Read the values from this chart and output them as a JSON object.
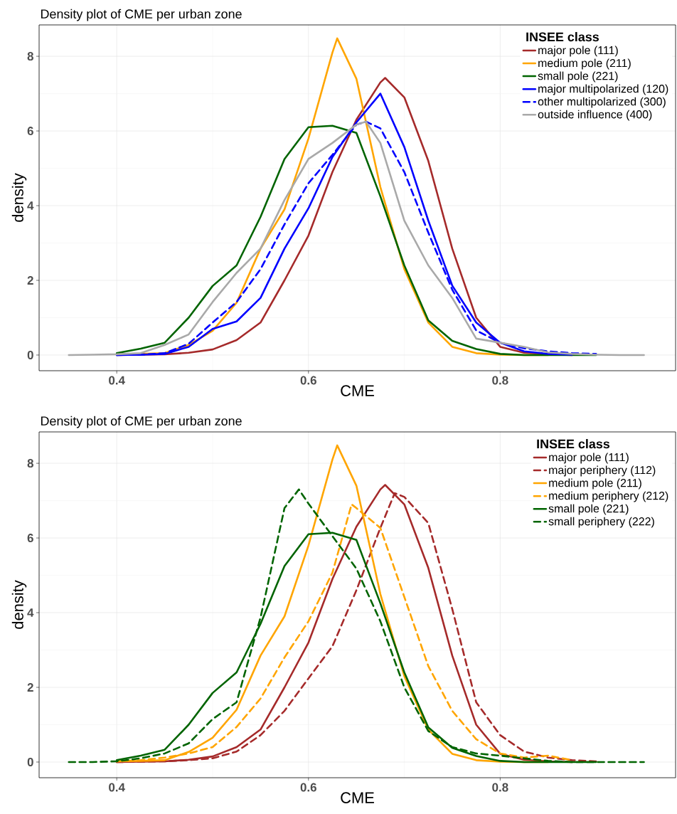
{
  "chart_data": [
    {
      "type": "line",
      "title": "Density plot of CME per urban zone",
      "xlabel": "CME",
      "ylabel": "density",
      "legend_title": "INSEE class",
      "legend": "top right",
      "grid": true,
      "xlim": [
        0.319,
        0.983
      ],
      "ylim": [
        -0.42,
        8.84
      ],
      "xticks": [
        0.4,
        0.6,
        0.8
      ],
      "yticks": [
        0,
        2,
        4,
        6,
        8
      ],
      "series": [
        {
          "name": "major pole (111)",
          "color": "#a52a2a",
          "line_style": "solid",
          "x": [
            0.4,
            0.425,
            0.45,
            0.475,
            0.5,
            0.525,
            0.55,
            0.575,
            0.6,
            0.625,
            0.65,
            0.675,
            0.68,
            0.7,
            0.725,
            0.75,
            0.775,
            0.8,
            0.825,
            0.85,
            0.875
          ],
          "values": [
            0,
            0.01,
            0.02,
            0.06,
            0.15,
            0.4,
            0.87,
            2.0,
            3.2,
            4.9,
            6.3,
            7.3,
            7.42,
            6.9,
            5.2,
            2.85,
            1.0,
            0.22,
            0.06,
            0.02,
            0
          ]
        },
        {
          "name": "medium pole (211)",
          "color": "#ffa500",
          "line_style": "solid",
          "x": [
            0.4,
            0.425,
            0.45,
            0.475,
            0.5,
            0.525,
            0.55,
            0.575,
            0.6,
            0.625,
            0.63,
            0.65,
            0.675,
            0.7,
            0.725,
            0.75,
            0.775,
            0.8,
            0.825,
            0.85
          ],
          "values": [
            0.02,
            0.03,
            0.05,
            0.27,
            0.65,
            1.4,
            2.85,
            3.9,
            5.8,
            8.1,
            8.48,
            7.4,
            4.5,
            2.3,
            0.87,
            0.22,
            0.05,
            0.01,
            0,
            0
          ]
        },
        {
          "name": "small pole (221)",
          "color": "#006400",
          "line_style": "solid",
          "x": [
            0.4,
            0.425,
            0.45,
            0.475,
            0.5,
            0.525,
            0.55,
            0.575,
            0.6,
            0.625,
            0.65,
            0.675,
            0.7,
            0.725,
            0.75,
            0.775,
            0.8,
            0.825,
            0.85,
            0.875,
            0.9
          ],
          "values": [
            0.05,
            0.17,
            0.33,
            1.0,
            1.85,
            2.4,
            3.7,
            5.25,
            6.1,
            6.14,
            5.95,
            4.25,
            2.4,
            0.93,
            0.38,
            0.16,
            0.03,
            0,
            0,
            0,
            0
          ]
        },
        {
          "name": "major multipolarized (120)",
          "color": "#0000ff",
          "line_style": "solid",
          "x": [
            0.4,
            0.425,
            0.45,
            0.475,
            0.5,
            0.525,
            0.55,
            0.575,
            0.6,
            0.625,
            0.65,
            0.675,
            0.7,
            0.725,
            0.75,
            0.775,
            0.8,
            0.825,
            0.85,
            0.875
          ],
          "values": [
            0,
            0.01,
            0.03,
            0.22,
            0.7,
            0.9,
            1.53,
            2.85,
            3.93,
            5.3,
            6.23,
            7.0,
            5.57,
            3.6,
            1.86,
            0.87,
            0.33,
            0.1,
            0.03,
            0.01
          ]
        },
        {
          "name": "other multipolarized (300)",
          "color": "#0000ff",
          "line_style": "dashed",
          "x": [
            0.4,
            0.425,
            0.45,
            0.475,
            0.5,
            0.525,
            0.55,
            0.575,
            0.6,
            0.625,
            0.65,
            0.66,
            0.675,
            0.7,
            0.725,
            0.75,
            0.775,
            0.8,
            0.825,
            0.85,
            0.875,
            0.9
          ],
          "values": [
            0,
            0.01,
            0.05,
            0.3,
            0.87,
            1.42,
            2.3,
            3.5,
            4.6,
            5.36,
            6.17,
            6.25,
            6.07,
            4.9,
            3.28,
            1.75,
            0.66,
            0.33,
            0.18,
            0.1,
            0.05,
            0.03
          ]
        },
        {
          "name": "outside influence (400)",
          "color": "#a9a9a9",
          "line_style": "solid",
          "x": [
            0.35,
            0.375,
            0.4,
            0.425,
            0.45,
            0.475,
            0.5,
            0.525,
            0.55,
            0.575,
            0.6,
            0.625,
            0.65,
            0.66,
            0.675,
            0.7,
            0.725,
            0.75,
            0.775,
            0.8,
            0.825,
            0.85,
            0.875,
            0.9,
            0.925,
            0.95
          ],
          "values": [
            0,
            0.01,
            0.02,
            0.05,
            0.27,
            0.55,
            1.42,
            2.2,
            2.85,
            4.15,
            5.25,
            5.68,
            6.17,
            6.25,
            5.68,
            3.6,
            2.4,
            1.53,
            0.44,
            0.33,
            0.22,
            0.07,
            0.03,
            0.01,
            0,
            0
          ]
        }
      ]
    },
    {
      "type": "line",
      "title": "Density plot of CME per urban zone",
      "xlabel": "CME",
      "ylabel": "density",
      "legend_title": "INSEE class",
      "legend": "top right",
      "grid": true,
      "xlim": [
        0.319,
        0.983
      ],
      "ylim": [
        -0.42,
        8.84
      ],
      "xticks": [
        0.4,
        0.6,
        0.8
      ],
      "yticks": [
        0,
        2,
        4,
        6,
        8
      ],
      "series": [
        {
          "name": "major pole (111)",
          "color": "#a52a2a",
          "line_style": "solid",
          "x": [
            0.4,
            0.425,
            0.45,
            0.475,
            0.5,
            0.525,
            0.55,
            0.575,
            0.6,
            0.625,
            0.65,
            0.675,
            0.68,
            0.7,
            0.725,
            0.75,
            0.775,
            0.8,
            0.825,
            0.85,
            0.875
          ],
          "values": [
            0,
            0.01,
            0.02,
            0.06,
            0.15,
            0.4,
            0.87,
            2.0,
            3.2,
            4.9,
            6.3,
            7.3,
            7.42,
            6.9,
            5.2,
            2.85,
            1.0,
            0.22,
            0.06,
            0.02,
            0
          ]
        },
        {
          "name": "major periphery (112)",
          "color": "#a52a2a",
          "line_style": "dashed",
          "x": [
            0.4,
            0.425,
            0.45,
            0.475,
            0.5,
            0.525,
            0.55,
            0.575,
            0.6,
            0.625,
            0.65,
            0.675,
            0.69,
            0.7,
            0.725,
            0.75,
            0.775,
            0.8,
            0.825,
            0.85,
            0.875,
            0.9
          ],
          "values": [
            0,
            0.01,
            0.02,
            0.05,
            0.1,
            0.28,
            0.72,
            1.37,
            2.24,
            3.1,
            4.6,
            6.27,
            7.2,
            7.1,
            6.4,
            4.1,
            1.6,
            0.72,
            0.28,
            0.12,
            0.05,
            0.02
          ]
        },
        {
          "name": "medium pole (211)",
          "color": "#ffa500",
          "line_style": "solid",
          "x": [
            0.4,
            0.425,
            0.45,
            0.475,
            0.5,
            0.525,
            0.55,
            0.575,
            0.6,
            0.625,
            0.63,
            0.65,
            0.675,
            0.7,
            0.725,
            0.75,
            0.775,
            0.8,
            0.825,
            0.85
          ],
          "values": [
            0.02,
            0.03,
            0.05,
            0.27,
            0.65,
            1.4,
            2.85,
            3.9,
            5.8,
            8.1,
            8.48,
            7.4,
            4.5,
            2.3,
            0.87,
            0.22,
            0.05,
            0.01,
            0,
            0
          ]
        },
        {
          "name": "medium periphery (212)",
          "color": "#ffa500",
          "line_style": "dashed",
          "x": [
            0.4,
            0.425,
            0.45,
            0.475,
            0.5,
            0.525,
            0.55,
            0.575,
            0.6,
            0.625,
            0.645,
            0.65,
            0.675,
            0.7,
            0.725,
            0.75,
            0.775,
            0.8,
            0.825,
            0.85,
            0.875
          ],
          "values": [
            0.02,
            0.05,
            0.12,
            0.23,
            0.4,
            0.94,
            1.7,
            2.8,
            3.77,
            5.07,
            6.9,
            6.8,
            6.27,
            4.42,
            2.57,
            1.37,
            0.61,
            0.23,
            0.12,
            0.17,
            0.05
          ]
        },
        {
          "name": "small pole (221)",
          "color": "#006400",
          "line_style": "solid",
          "x": [
            0.4,
            0.425,
            0.45,
            0.475,
            0.5,
            0.525,
            0.55,
            0.575,
            0.6,
            0.625,
            0.65,
            0.675,
            0.7,
            0.725,
            0.75,
            0.775,
            0.8,
            0.825,
            0.85,
            0.875,
            0.9
          ],
          "values": [
            0.05,
            0.17,
            0.33,
            1.0,
            1.85,
            2.4,
            3.7,
            5.25,
            6.1,
            6.14,
            5.95,
            4.25,
            2.4,
            0.93,
            0.38,
            0.16,
            0.03,
            0,
            0,
            0,
            0
          ]
        },
        {
          "name": "small periphery (222)",
          "color": "#006400",
          "line_style": "dashed",
          "x": [
            0.35,
            0.375,
            0.4,
            0.425,
            0.45,
            0.475,
            0.5,
            0.525,
            0.55,
            0.575,
            0.59,
            0.6,
            0.625,
            0.65,
            0.675,
            0.7,
            0.725,
            0.75,
            0.775,
            0.8,
            0.825,
            0.85,
            0.875,
            0.9,
            0.925,
            0.95
          ],
          "values": [
            0,
            0,
            0.02,
            0.1,
            0.23,
            0.5,
            1.15,
            1.6,
            3.87,
            6.8,
            7.3,
            6.92,
            6.05,
            5.18,
            3.77,
            2.0,
            0.83,
            0.4,
            0.23,
            0.17,
            0.1,
            0.03,
            0,
            0,
            0,
            0
          ]
        }
      ]
    }
  ]
}
